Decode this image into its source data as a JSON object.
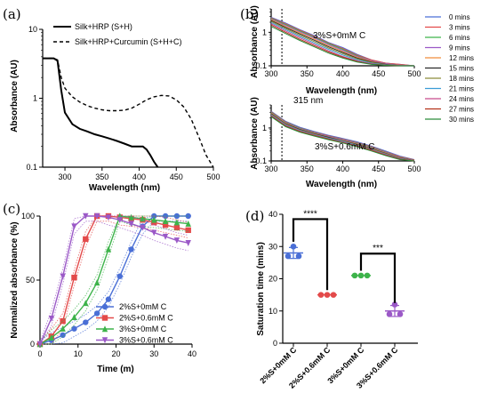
{
  "chart_data": [
    {
      "panel": "(a)",
      "type": "line",
      "xlabel": "Wavelength (nm)",
      "ylabel": "Absorbance (AU)",
      "xlim": [
        270,
        500
      ],
      "ylim": [
        0.1,
        10
      ],
      "yscale": "log",
      "xticks": [
        "300",
        "350",
        "400",
        "450",
        "500"
      ],
      "yticks": [
        "0.1",
        "1",
        "10"
      ],
      "legend_position": "top-right",
      "series": [
        {
          "name": "Silk+HRP (S+H)",
          "style": "solid",
          "x": [
            270,
            285,
            290,
            295,
            300,
            310,
            320,
            330,
            340,
            350,
            360,
            370,
            380,
            390,
            400,
            405,
            410,
            415,
            420,
            425
          ],
          "y": [
            3.8,
            3.8,
            3.5,
            1.3,
            0.62,
            0.42,
            0.36,
            0.33,
            0.3,
            0.28,
            0.26,
            0.24,
            0.22,
            0.2,
            0.2,
            0.2,
            0.18,
            0.15,
            0.12,
            0.1
          ]
        },
        {
          "name": "Silk+HRP+Curcumin (S+H+C)",
          "style": "dashed",
          "x": [
            270,
            285,
            290,
            295,
            300,
            310,
            320,
            330,
            340,
            350,
            360,
            370,
            380,
            390,
            400,
            410,
            420,
            430,
            440,
            450,
            460,
            470,
            480,
            490,
            500
          ],
          "y": [
            3.8,
            3.8,
            3.6,
            2.0,
            1.4,
            1.05,
            0.88,
            0.78,
            0.72,
            0.68,
            0.66,
            0.66,
            0.67,
            0.72,
            0.82,
            0.95,
            1.05,
            1.1,
            1.08,
            0.95,
            0.75,
            0.5,
            0.28,
            0.15,
            0.1
          ]
        }
      ]
    },
    {
      "panel": "(b)",
      "type": "line",
      "xlabel": "Wavelength (nm)",
      "ylabel": "Absorbance (AU)",
      "xlim": [
        300,
        500
      ],
      "ylim": [
        0.1,
        5
      ],
      "yscale": "log",
      "xticks": [
        "300",
        "350",
        "400",
        "450",
        "500"
      ],
      "yticks": [
        "0.1",
        "1"
      ],
      "marker_line": {
        "x": 315,
        "label": "315 nm"
      },
      "legend": [
        {
          "name": "0 mins",
          "color": "#4a6fd6"
        },
        {
          "name": "3 mins",
          "color": "#e34a4a"
        },
        {
          "name": "6 mins",
          "color": "#3db34a"
        },
        {
          "name": "9 mins",
          "color": "#9b59c7"
        },
        {
          "name": "12 mins",
          "color": "#f08c3a"
        },
        {
          "name": "15 mins",
          "color": "#2a2a2a"
        },
        {
          "name": "18 mins",
          "color": "#8c8c3a"
        },
        {
          "name": "21 mins",
          "color": "#3a9cd6"
        },
        {
          "name": "24 mins",
          "color": "#c74a8c"
        },
        {
          "name": "27 mins",
          "color": "#b3331a"
        },
        {
          "name": "30 mins",
          "color": "#2a8c3a"
        }
      ],
      "subplots": [
        {
          "label": "3%S+0mM C",
          "x": [
            300,
            320,
            340,
            360,
            380,
            400,
            420,
            440,
            460,
            480,
            500
          ],
          "series": [
            {
              "name": "0 mins",
              "y": [
                2.8,
                1.9,
                1.2,
                0.8,
                0.5,
                0.35,
                0.22,
                0.15,
                0.12,
                0.11,
                0.1
              ]
            },
            {
              "name": "3 mins",
              "y": [
                2.7,
                1.8,
                1.15,
                0.76,
                0.48,
                0.33,
                0.21,
                0.15,
                0.12,
                0.11,
                0.1
              ]
            },
            {
              "name": "6 mins",
              "y": [
                2.6,
                1.7,
                1.1,
                0.72,
                0.46,
                0.31,
                0.2,
                0.14,
                0.115,
                0.105,
                0.1
              ]
            },
            {
              "name": "9 mins",
              "y": [
                2.5,
                1.6,
                1.03,
                0.68,
                0.43,
                0.29,
                0.19,
                0.14,
                0.115,
                0.105,
                0.1
              ]
            },
            {
              "name": "12 mins",
              "y": [
                2.4,
                1.5,
                0.96,
                0.63,
                0.4,
                0.27,
                0.18,
                0.135,
                0.11,
                0.103,
                0.1
              ]
            },
            {
              "name": "15 mins",
              "y": [
                2.25,
                1.4,
                0.89,
                0.58,
                0.37,
                0.25,
                0.17,
                0.13,
                0.11,
                0.102,
                0.1
              ]
            },
            {
              "name": "18 mins",
              "y": [
                2.1,
                1.3,
                0.82,
                0.53,
                0.34,
                0.23,
                0.16,
                0.125,
                0.108,
                0.102,
                0.1
              ]
            },
            {
              "name": "21 mins",
              "y": [
                1.95,
                1.2,
                0.75,
                0.48,
                0.31,
                0.21,
                0.15,
                0.12,
                0.106,
                0.101,
                0.1
              ]
            },
            {
              "name": "24 mins",
              "y": [
                1.8,
                1.1,
                0.68,
                0.44,
                0.28,
                0.19,
                0.14,
                0.115,
                0.105,
                0.101,
                0.1
              ]
            },
            {
              "name": "27 mins",
              "y": [
                1.65,
                1.0,
                0.62,
                0.4,
                0.26,
                0.18,
                0.135,
                0.112,
                0.104,
                0.1,
                0.1
              ]
            },
            {
              "name": "30 mins",
              "y": [
                1.5,
                0.92,
                0.57,
                0.37,
                0.24,
                0.17,
                0.13,
                0.11,
                0.103,
                0.1,
                0.1
              ]
            }
          ]
        },
        {
          "label": "3%S+0.6mM C",
          "x": [
            300,
            320,
            340,
            360,
            380,
            400,
            420,
            440,
            460,
            480,
            500
          ],
          "series": [
            {
              "name": "0 mins",
              "y": [
                3.2,
                1.6,
                1.05,
                0.78,
                0.6,
                0.48,
                0.38,
                0.28,
                0.2,
                0.14,
                0.11
              ]
            },
            {
              "name": "3 mins",
              "y": [
                3.1,
                1.55,
                1.0,
                0.75,
                0.58,
                0.46,
                0.36,
                0.27,
                0.19,
                0.135,
                0.108
              ]
            },
            {
              "name": "6 mins",
              "y": [
                3.0,
                1.5,
                0.98,
                0.73,
                0.56,
                0.45,
                0.35,
                0.26,
                0.185,
                0.13,
                0.106
              ]
            },
            {
              "name": "9 mins",
              "y": [
                2.9,
                1.45,
                0.95,
                0.71,
                0.55,
                0.44,
                0.34,
                0.25,
                0.18,
                0.128,
                0.105
              ]
            },
            {
              "name": "12 mins",
              "y": [
                2.8,
                1.4,
                0.92,
                0.69,
                0.53,
                0.42,
                0.33,
                0.24,
                0.175,
                0.125,
                0.104
              ]
            },
            {
              "name": "15 mins",
              "y": [
                2.7,
                1.35,
                0.9,
                0.67,
                0.52,
                0.41,
                0.32,
                0.235,
                0.17,
                0.122,
                0.103
              ]
            },
            {
              "name": "18 mins",
              "y": [
                2.6,
                1.3,
                0.87,
                0.65,
                0.5,
                0.4,
                0.31,
                0.23,
                0.165,
                0.12,
                0.102
              ]
            },
            {
              "name": "21 mins",
              "y": [
                2.5,
                1.25,
                0.84,
                0.63,
                0.49,
                0.39,
                0.3,
                0.22,
                0.16,
                0.118,
                0.102
              ]
            },
            {
              "name": "24 mins",
              "y": [
                2.4,
                1.2,
                0.81,
                0.61,
                0.47,
                0.37,
                0.29,
                0.215,
                0.155,
                0.115,
                0.101
              ]
            },
            {
              "name": "27 mins",
              "y": [
                2.3,
                1.15,
                0.78,
                0.59,
                0.46,
                0.36,
                0.28,
                0.21,
                0.15,
                0.113,
                0.1
              ]
            },
            {
              "name": "30 mins",
              "y": [
                2.2,
                1.1,
                0.75,
                0.57,
                0.44,
                0.35,
                0.27,
                0.2,
                0.145,
                0.11,
                0.1
              ]
            }
          ]
        }
      ]
    },
    {
      "panel": "(c)",
      "type": "line",
      "xlabel": "Time (m)",
      "ylabel": "Normalized absorbance (%)",
      "xlim": [
        0,
        40
      ],
      "ylim": [
        0,
        100
      ],
      "xticks": [
        "0",
        "10",
        "20",
        "30",
        "40"
      ],
      "yticks": [
        "0",
        "50",
        "100"
      ],
      "legend_position": "bottom-right",
      "series": [
        {
          "name": "2%S+0mM C",
          "color": "#4a6fd6",
          "marker": "circle",
          "x": [
            0,
            3,
            6,
            9,
            12,
            15,
            18,
            21,
            24,
            27,
            30,
            33,
            36,
            39
          ],
          "y": [
            0,
            3,
            7,
            12,
            17,
            24,
            35,
            53,
            74,
            92,
            100,
            100,
            100,
            100
          ]
        },
        {
          "name": "2%S+0.6mM C",
          "color": "#e34a4a",
          "marker": "square",
          "x": [
            0,
            3,
            6,
            9,
            12,
            15,
            18,
            21,
            24,
            27,
            30,
            33,
            36,
            39
          ],
          "y": [
            0,
            6,
            18,
            52,
            82,
            100,
            100,
            99,
            98,
            97,
            95,
            93,
            91,
            89
          ]
        },
        {
          "name": "3%S+0mM C",
          "color": "#3db34a",
          "marker": "triangle-up",
          "x": [
            0,
            3,
            6,
            9,
            12,
            15,
            18,
            21,
            24,
            27,
            30,
            33,
            36,
            39
          ],
          "y": [
            0,
            5,
            12,
            21,
            32,
            48,
            74,
            100,
            99,
            98,
            97,
            96,
            95,
            94
          ]
        },
        {
          "name": "3%S+0.6mM C",
          "color": "#9b59c7",
          "marker": "triangle-down",
          "x": [
            0,
            3,
            6,
            9,
            12,
            15,
            18,
            21,
            24,
            27,
            30,
            33,
            36,
            39
          ],
          "y": [
            0,
            20,
            53,
            92,
            100,
            100,
            99,
            97,
            94,
            91,
            87,
            84,
            81,
            79
          ]
        }
      ]
    },
    {
      "panel": "(d)",
      "type": "scatter",
      "ylabel": "Saturation time (mins)",
      "ylim": [
        0,
        40
      ],
      "yticks": [
        "0",
        "10",
        "20",
        "30",
        "40"
      ],
      "categories": [
        "2%S+0mM C",
        "2%S+0.6mM C",
        "3%S+0mM C",
        "3%S+0.6mM C"
      ],
      "colors": [
        "#4a6fd6",
        "#e34a4a",
        "#3db34a",
        "#9b59c7"
      ],
      "means": [
        28,
        15,
        21,
        10
      ],
      "errors": [
        1.7,
        0,
        0,
        1.7
      ],
      "points": [
        [
          30,
          27,
          27
        ],
        [
          15,
          15,
          15
        ],
        [
          21,
          21,
          21
        ],
        [
          12,
          9,
          9
        ]
      ],
      "significance": [
        {
          "between": [
            0,
            1
          ],
          "label": "****"
        },
        {
          "between": [
            2,
            3
          ],
          "label": "***"
        }
      ]
    }
  ]
}
